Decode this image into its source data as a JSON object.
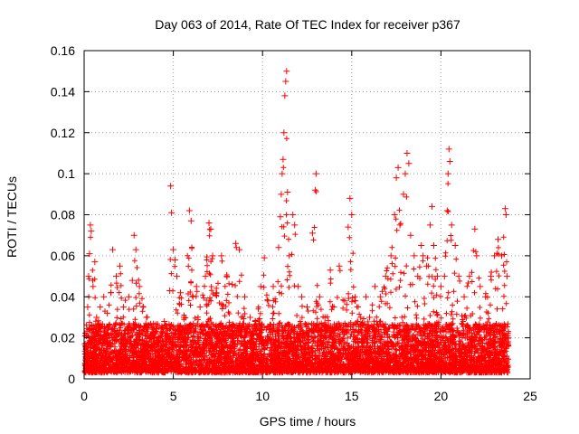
{
  "chart_data": {
    "type": "scatter",
    "title": "Day 063 of 2014, Rate Of TEC Index for receiver p367",
    "xlabel": "GPS time / hours",
    "ylabel": "ROTI / TECUs",
    "xlim": [
      0,
      25
    ],
    "ylim": [
      0,
      0.16
    ],
    "xticks": [
      0,
      5,
      10,
      15,
      20,
      25
    ],
    "xtick_labels": [
      "0",
      "5",
      "10",
      "15",
      "20",
      "25"
    ],
    "yticks": [
      0,
      0.02,
      0.04,
      0.06,
      0.08,
      0.1,
      0.12,
      0.14,
      0.16
    ],
    "ytick_labels": [
      "0",
      "0.02",
      "0.04",
      "0.06",
      "0.08",
      "0.1",
      "0.12",
      "0.14",
      "0.16"
    ],
    "grid": true,
    "marker": "+",
    "series": [
      {
        "name": "ROTI",
        "color": "#ff0000",
        "points": [
          [
            0.1,
            0.012
          ],
          [
            0.2,
            0.035
          ],
          [
            0.25,
            0.05
          ],
          [
            0.3,
            0.061
          ],
          [
            0.35,
            0.075
          ],
          [
            0.4,
            0.072
          ],
          [
            0.5,
            0.045
          ],
          [
            0.6,
            0.057
          ],
          [
            0.7,
            0.03
          ],
          [
            0.9,
            0.035
          ],
          [
            1.1,
            0.04
          ],
          [
            1.3,
            0.032
          ],
          [
            1.5,
            0.042
          ],
          [
            1.6,
            0.063
          ],
          [
            1.8,
            0.05
          ],
          [
            2.0,
            0.055
          ],
          [
            2.2,
            0.035
          ],
          [
            2.5,
            0.04
          ],
          [
            2.7,
            0.048
          ],
          [
            2.8,
            0.07
          ],
          [
            2.9,
            0.063
          ],
          [
            3.1,
            0.045
          ],
          [
            3.3,
            0.035
          ],
          [
            3.5,
            0.03
          ],
          [
            3.8,
            0.025
          ],
          [
            4.0,
            0.022
          ],
          [
            4.2,
            0.02
          ],
          [
            4.5,
            0.028
          ],
          [
            4.8,
            0.043
          ],
          [
            4.85,
            0.094
          ],
          [
            4.9,
            0.081
          ],
          [
            5.0,
            0.063
          ],
          [
            5.1,
            0.058
          ],
          [
            5.2,
            0.05
          ],
          [
            5.4,
            0.042
          ],
          [
            5.6,
            0.03
          ],
          [
            5.9,
            0.082
          ],
          [
            6.0,
            0.077
          ],
          [
            6.1,
            0.04
          ],
          [
            6.3,
            0.045
          ],
          [
            6.5,
            0.035
          ],
          [
            6.8,
            0.05
          ],
          [
            7.0,
            0.076
          ],
          [
            7.1,
            0.073
          ],
          [
            7.2,
            0.06
          ],
          [
            7.4,
            0.042
          ],
          [
            7.7,
            0.06
          ],
          [
            8.0,
            0.05
          ],
          [
            8.3,
            0.046
          ],
          [
            8.5,
            0.066
          ],
          [
            8.7,
            0.063
          ],
          [
            9.0,
            0.04
          ],
          [
            9.3,
            0.03
          ],
          [
            9.6,
            0.028
          ],
          [
            9.9,
            0.045
          ],
          [
            10.1,
            0.059
          ],
          [
            10.3,
            0.038
          ],
          [
            10.6,
            0.045
          ],
          [
            10.9,
            0.064
          ],
          [
            11.0,
            0.079
          ],
          [
            11.05,
            0.09
          ],
          [
            11.1,
            0.1
          ],
          [
            11.15,
            0.107
          ],
          [
            11.2,
            0.12
          ],
          [
            11.25,
            0.138
          ],
          [
            11.3,
            0.145
          ],
          [
            11.35,
            0.15
          ],
          [
            11.4,
            0.091
          ],
          [
            11.5,
            0.06
          ],
          [
            11.7,
            0.08
          ],
          [
            11.8,
            0.075
          ],
          [
            12.0,
            0.045
          ],
          [
            12.2,
            0.04
          ],
          [
            12.5,
            0.035
          ],
          [
            12.8,
            0.071
          ],
          [
            12.95,
            0.092
          ],
          [
            13.0,
            0.1
          ],
          [
            13.2,
            0.04
          ],
          [
            13.5,
            0.03
          ],
          [
            13.8,
            0.053
          ],
          [
            14.0,
            0.035
          ],
          [
            14.3,
            0.055
          ],
          [
            14.6,
            0.038
          ],
          [
            14.8,
            0.074
          ],
          [
            14.9,
            0.088
          ],
          [
            15.0,
            0.08
          ],
          [
            15.2,
            0.038
          ],
          [
            15.5,
            0.03
          ],
          [
            15.8,
            0.04
          ],
          [
            16.0,
            0.03
          ],
          [
            16.3,
            0.045
          ],
          [
            16.6,
            0.04
          ],
          [
            16.9,
            0.05
          ],
          [
            17.2,
            0.06
          ],
          [
            17.4,
            0.08
          ],
          [
            17.5,
            0.098
          ],
          [
            17.6,
            0.103
          ],
          [
            17.7,
            0.075
          ],
          [
            17.9,
            0.09
          ],
          [
            18.0,
            0.1
          ],
          [
            18.1,
            0.11
          ],
          [
            18.2,
            0.105
          ],
          [
            18.3,
            0.07
          ],
          [
            18.5,
            0.06
          ],
          [
            18.7,
            0.05
          ],
          [
            18.9,
            0.065
          ],
          [
            19.0,
            0.06
          ],
          [
            19.2,
            0.055
          ],
          [
            19.4,
            0.075
          ],
          [
            19.5,
            0.084
          ],
          [
            19.6,
            0.065
          ],
          [
            19.8,
            0.05
          ],
          [
            20.0,
            0.045
          ],
          [
            20.2,
            0.05
          ],
          [
            20.35,
            0.082
          ],
          [
            20.4,
            0.1
          ],
          [
            20.45,
            0.112
          ],
          [
            20.5,
            0.106
          ],
          [
            20.6,
            0.075
          ],
          [
            20.8,
            0.065
          ],
          [
            21.0,
            0.05
          ],
          [
            21.3,
            0.04
          ],
          [
            21.6,
            0.05
          ],
          [
            21.9,
            0.073
          ],
          [
            22.0,
            0.06
          ],
          [
            22.2,
            0.045
          ],
          [
            22.5,
            0.04
          ],
          [
            22.8,
            0.05
          ],
          [
            23.0,
            0.06
          ],
          [
            23.2,
            0.068
          ],
          [
            23.4,
            0.06
          ],
          [
            23.6,
            0.083
          ],
          [
            23.65,
            0.08
          ],
          [
            23.7,
            0.05
          ],
          [
            23.75,
            0.02
          ]
        ]
      }
    ]
  }
}
